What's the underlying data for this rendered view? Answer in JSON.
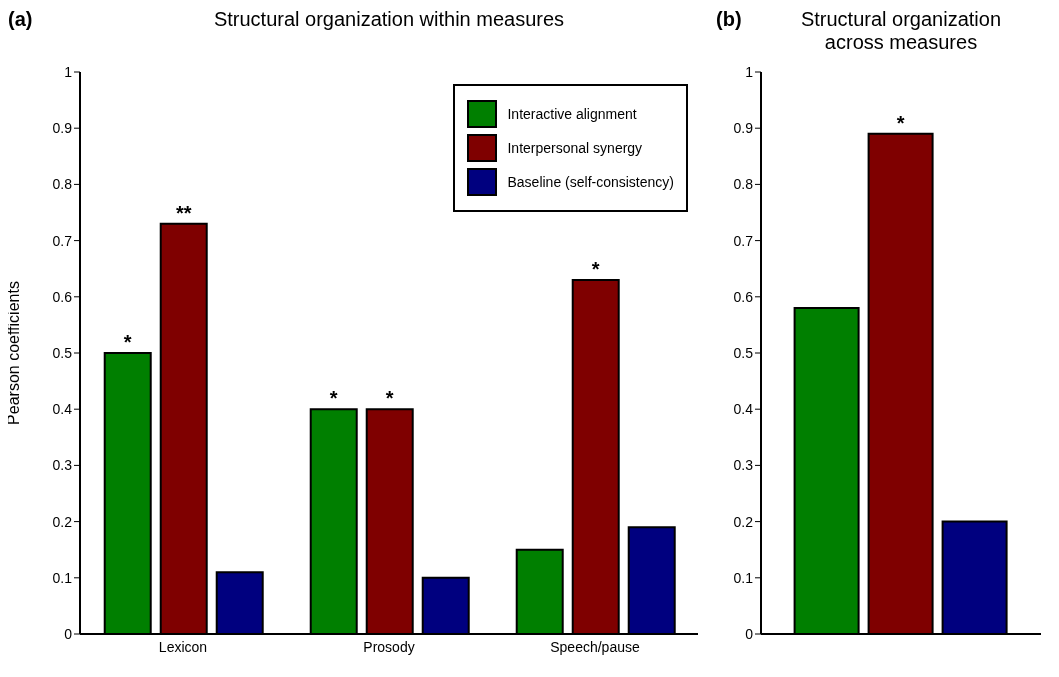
{
  "chart_data": [
    {
      "type": "bar",
      "title": "Structural organization within measures",
      "ylabel": "Pearson coefficients",
      "categories": [
        "Lexicon",
        "Prosody",
        "Speech/pause"
      ],
      "series": [
        {
          "name": "Interactive alignment",
          "color": "#007f00",
          "values": [
            0.5,
            0.4,
            0.15
          ],
          "value_labels": [
            "*",
            "*",
            null
          ]
        },
        {
          "name": "Interpersonal synergy",
          "color": "#7f0000",
          "values": [
            0.73,
            0.4,
            0.63
          ],
          "value_labels": [
            "**",
            "*",
            "*"
          ]
        },
        {
          "name": "Baseline (self-consistency)",
          "color": "#00007f",
          "values": [
            0.11,
            0.1,
            0.19
          ]
        }
      ],
      "ylim": [
        0,
        1
      ],
      "yticks": [
        0,
        0.1,
        0.2,
        0.3,
        0.4,
        0.5,
        0.6,
        0.7,
        0.8,
        0.9,
        1
      ],
      "legend": "top right",
      "annotations": [
        "(a)"
      ]
    },
    {
      "type": "bar",
      "title": "Structural organization across measures",
      "categories": [
        null
      ],
      "series": [
        {
          "color": "#007f00",
          "values": [
            0.58
          ]
        },
        {
          "color": "#7f0000",
          "values": [
            0.89
          ],
          "value_labels": [
            "*"
          ]
        },
        {
          "color": "#00007f",
          "values": [
            0.2
          ]
        }
      ],
      "ylim": [
        0,
        1
      ],
      "yticks": [
        0,
        0.1,
        0.2,
        0.3,
        0.4,
        0.5,
        0.6,
        0.7,
        0.8,
        0.9,
        1
      ],
      "annotations": [
        "(b)"
      ]
    }
  ]
}
